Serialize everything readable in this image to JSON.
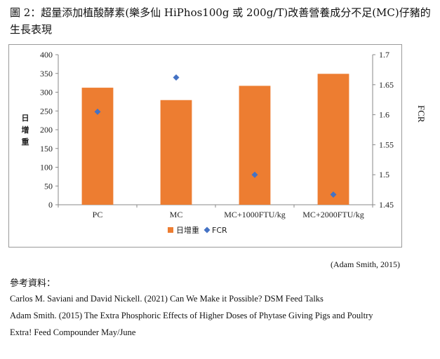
{
  "figure": {
    "caption": "圖 2：超量添加植酸酵素(樂多仙 HiPhos100g 或 200g/T)改善營養成分不足(MC)仔豬的生長表現",
    "source_note": "(Adam Smith, 2015)"
  },
  "references": {
    "title": "參考資料：",
    "items": [
      "Carlos M. Saviani and David Nickell. (2021) Can We Make it Possible? DSM Feed Talks",
      "Adam Smith. (2015) The Extra Phosphoric Effects of Higher Doses of Phytase Giving Pigs and Poultry",
      "Extra! Feed Compounder May/June"
    ]
  },
  "chart_data": {
    "type": "bar",
    "categories": [
      "PC",
      "MC",
      "MC+1000FTU/kg",
      "MC+2000FTU/kg"
    ],
    "series": [
      {
        "name": "日增重",
        "type": "bar",
        "axis": "left",
        "values": [
          312,
          279,
          317,
          349
        ],
        "color": "#ED7D31"
      },
      {
        "name": "FCR",
        "type": "scatter",
        "axis": "right",
        "values": [
          1.605,
          1.662,
          1.5,
          1.467
        ],
        "color": "#4472C4"
      }
    ],
    "ylabel": "日增重",
    "y2label": "FCR",
    "ylim": [
      0,
      400
    ],
    "yticks": [
      0,
      50,
      100,
      150,
      200,
      250,
      300,
      350,
      400
    ],
    "y2lim": [
      1.45,
      1.7
    ],
    "y2ticks": [
      "1.45",
      "1.5",
      "1.55",
      "1.6",
      "1.65",
      "1.7"
    ],
    "grid": false,
    "legend_position": "bottom"
  }
}
